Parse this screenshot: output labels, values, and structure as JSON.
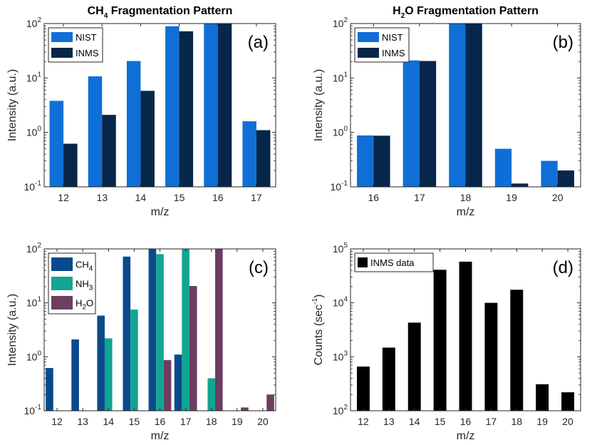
{
  "chart_data": [
    {
      "id": "a",
      "type": "bar",
      "title": "CH4 Fragmentation Pattern",
      "title_main": "CH",
      "title_sub": "4",
      "title_rest": " Fragmentation Pattern",
      "panel_label": "(a)",
      "xlabel": "m/z",
      "ylabel": "Intensity (a.u.)",
      "yscale": "log",
      "ylim": [
        0.1,
        100
      ],
      "yticks": [
        {
          "base": "10",
          "exp": "-1",
          "value": 0.1
        },
        {
          "base": "10",
          "exp": "0",
          "value": 1
        },
        {
          "base": "10",
          "exp": "1",
          "value": 10
        },
        {
          "base": "10",
          "exp": "2",
          "value": 100
        }
      ],
      "categories": [
        "12",
        "13",
        "14",
        "15",
        "16",
        "17"
      ],
      "legend_position": "top-left",
      "series": [
        {
          "name": "NIST",
          "color": "#0f6fd6",
          "values": [
            3.8,
            10.7,
            20.5,
            89,
            100,
            1.6
          ]
        },
        {
          "name": "INMS",
          "color": "#06264a",
          "values": [
            0.62,
            2.1,
            5.8,
            72,
            100,
            1.1
          ]
        }
      ]
    },
    {
      "id": "b",
      "type": "bar",
      "title": "H2O Fragmentation Pattern",
      "title_main": "H",
      "title_sub": "2",
      "title_rest": "O Fragmentation Pattern",
      "panel_label": "(b)",
      "xlabel": "m/z",
      "ylabel": "Intensity (a.u.)",
      "yscale": "log",
      "ylim": [
        0.1,
        100
      ],
      "yticks": [
        {
          "base": "10",
          "exp": "-1",
          "value": 0.1
        },
        {
          "base": "10",
          "exp": "0",
          "value": 1
        },
        {
          "base": "10",
          "exp": "1",
          "value": 10
        },
        {
          "base": "10",
          "exp": "2",
          "value": 100
        }
      ],
      "categories": [
        "16",
        "17",
        "18",
        "19",
        "20"
      ],
      "legend_position": "top-left",
      "series": [
        {
          "name": "NIST",
          "color": "#0f6fd6",
          "values": [
            0.88,
            21,
            100,
            0.5,
            0.3
          ]
        },
        {
          "name": "INMS",
          "color": "#06264a",
          "values": [
            0.87,
            20.5,
            100,
            0.115,
            0.2
          ]
        }
      ]
    },
    {
      "id": "c",
      "type": "bar",
      "title": "",
      "panel_label": "(c)",
      "xlabel": "m/z",
      "ylabel": "Intensity (a.u.)",
      "yscale": "log",
      "ylim": [
        0.1,
        100
      ],
      "yticks": [
        {
          "base": "10",
          "exp": "-1",
          "value": 0.1
        },
        {
          "base": "10",
          "exp": "0",
          "value": 1
        },
        {
          "base": "10",
          "exp": "1",
          "value": 10
        },
        {
          "base": "10",
          "exp": "2",
          "value": 100
        }
      ],
      "categories": [
        "12",
        "13",
        "14",
        "15",
        "16",
        "17",
        "18",
        "19",
        "20"
      ],
      "legend_position": "top-left",
      "series": [
        {
          "name": "CH4",
          "name_main": "CH",
          "name_sub": "4",
          "name_rest": "",
          "color": "#0a4a8c",
          "values": [
            0.62,
            2.1,
            5.8,
            72,
            100,
            1.1,
            null,
            null,
            null
          ]
        },
        {
          "name": "NH3",
          "name_main": "NH",
          "name_sub": "3",
          "name_rest": "",
          "color": "#12a592",
          "values": [
            null,
            null,
            2.2,
            7.5,
            80,
            100,
            0.4,
            null,
            null
          ]
        },
        {
          "name": "H2O",
          "name_main": "H",
          "name_sub": "2",
          "name_rest": "O",
          "color": "#6c3e62",
          "values": [
            null,
            null,
            null,
            null,
            0.87,
            20.5,
            100,
            0.115,
            0.2
          ]
        }
      ]
    },
    {
      "id": "d",
      "type": "bar",
      "title": "",
      "panel_label": "(d)",
      "xlabel": "m/z",
      "ylabel": "Counts (sec-1)",
      "ylabel_main": "Counts (sec",
      "ylabel_sup": "-1",
      "ylabel_rest": ")",
      "yscale": "log",
      "ylim": [
        100,
        100000
      ],
      "yticks": [
        {
          "base": "10",
          "exp": "2",
          "value": 100
        },
        {
          "base": "10",
          "exp": "3",
          "value": 1000
        },
        {
          "base": "10",
          "exp": "4",
          "value": 10000
        },
        {
          "base": "10",
          "exp": "5",
          "value": 100000
        }
      ],
      "categories": [
        "12",
        "13",
        "14",
        "15",
        "16",
        "17",
        "18",
        "19",
        "20"
      ],
      "legend_position": "top-left",
      "series": [
        {
          "name": "INMS data",
          "color": "#000000",
          "values": [
            660,
            1480,
            4300,
            41000,
            58000,
            10000,
            17500,
            310,
            220
          ]
        }
      ]
    }
  ]
}
